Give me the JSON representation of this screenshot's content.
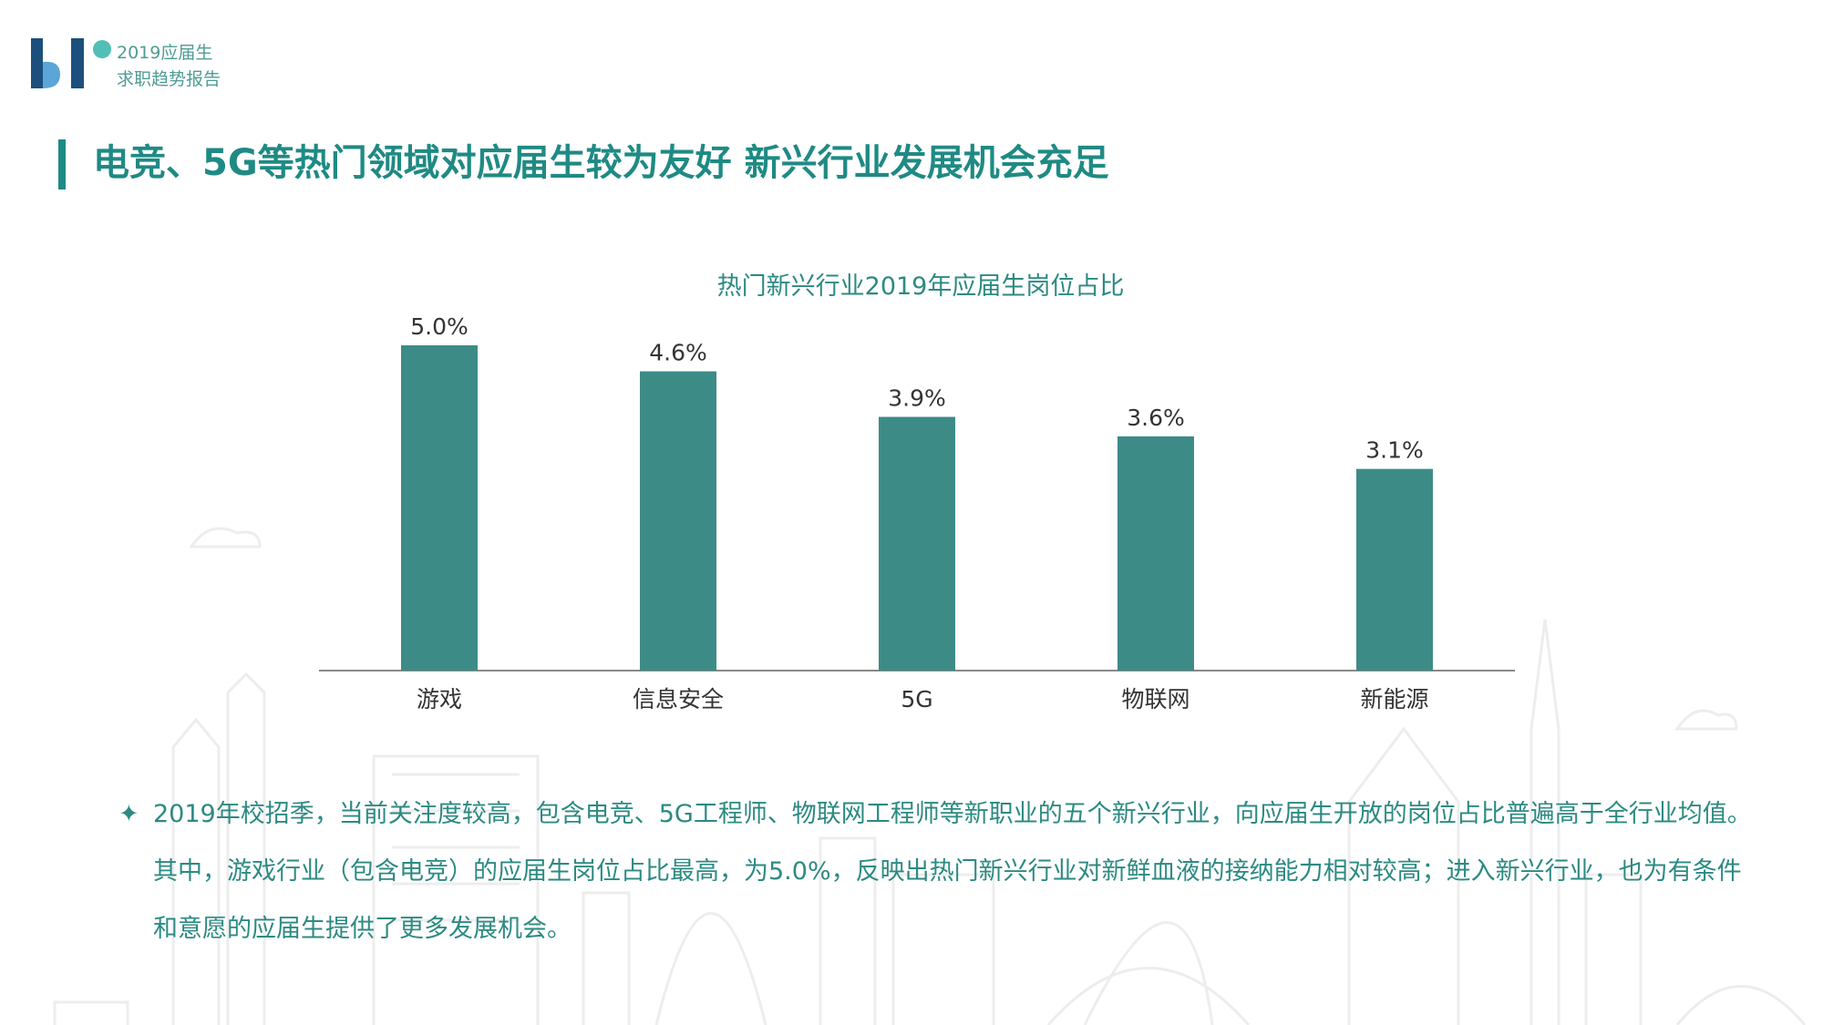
{
  "header": {
    "logo_line1": "2019应届生",
    "logo_line2": "求职趋势报告"
  },
  "main_title": "电竞、5G等热门领域对应届生较为友好 新兴行业发展机会充足",
  "colors": {
    "accent": "#1f8a84",
    "bar": "#3d8b87",
    "logo_dark": "#1c4f7c",
    "logo_light": "#5aa6d6",
    "logo_dot": "#52bfb6"
  },
  "chart_data": {
    "type": "bar",
    "title": "热门新兴行业2019年应届生岗位占比",
    "categories": [
      "游戏",
      "信息安全",
      "5G",
      "物联网",
      "新能源"
    ],
    "values": [
      5.0,
      4.6,
      3.9,
      3.6,
      3.1
    ],
    "value_labels": [
      "5.0%",
      "4.6%",
      "3.9%",
      "3.6%",
      "3.1%"
    ],
    "unit": "%",
    "ylim": [
      0,
      5.0
    ],
    "grid": false,
    "xlabel": "",
    "ylabel": ""
  },
  "body": {
    "bullet": "✦",
    "paragraph": "2019年校招季，当前关注度较高，包含电竞、5G工程师、物联网工程师等新职业的五个新兴行业，向应届生开放的岗位占比普遍高于全行业均值。其中，游戏行业（包含电竞）的应届生岗位占比最高，为5.0%，反映出热门新兴行业对新鲜血液的接纳能力相对较高；进入新兴行业，也为有条件和意愿的应届生提供了更多发展机会。"
  }
}
